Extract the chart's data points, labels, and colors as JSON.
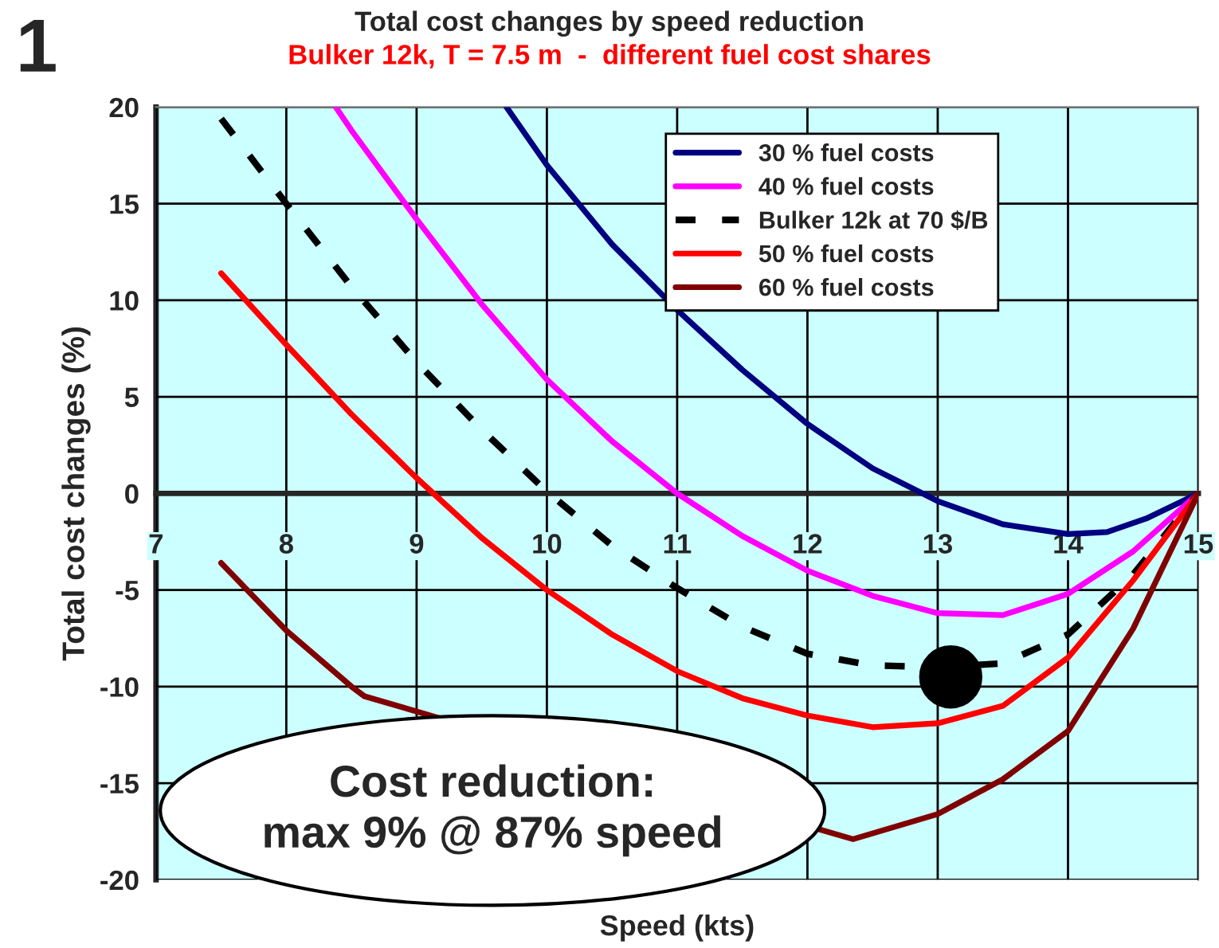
{
  "chart_data": {
    "type": "line",
    "title": "Total cost changes by speed reduction",
    "subtitle": "Bulker 12k, T = 7.5 m  -  different fuel cost shares",
    "xlabel": "Speed (kts)",
    "ylabel": "Total cost changes (%)",
    "annotations": [
      "1",
      "Cost reduction:\nmax 9% @ 87% speed"
    ],
    "xlim": [
      7,
      15
    ],
    "xticks": [
      7,
      8,
      9,
      10,
      11,
      12,
      13,
      14,
      15
    ],
    "ylim": [
      -20,
      20
    ],
    "yticks": [
      -20,
      -15,
      -10,
      -5,
      0,
      5,
      10,
      15,
      20
    ],
    "grid": true,
    "legend": "top right",
    "marker": "none",
    "series": [
      {
        "name": "30 % fuel costs",
        "color": "#000080",
        "line_style": "solid",
        "x": [
          9.69,
          10,
          10.5,
          11,
          11.5,
          12,
          12.5,
          13,
          13.5,
          14,
          14.3,
          14.6,
          15
        ],
        "values": [
          20,
          17,
          12.9,
          9.5,
          6.4,
          3.6,
          1.3,
          -0.4,
          -1.6,
          -2.1,
          -2.0,
          -1.3,
          0
        ]
      },
      {
        "name": "40 % fuel costs",
        "color": "#ff00ff",
        "line_style": "solid",
        "x": [
          8.38,
          8.5,
          9,
          9.5,
          10,
          10.5,
          11,
          11.5,
          12,
          12.5,
          13,
          13.5,
          14,
          14.5,
          15
        ],
        "values": [
          20,
          18.8,
          14.2,
          9.8,
          5.9,
          2.7,
          0,
          -2.2,
          -4,
          -5.3,
          -6.2,
          -6.3,
          -5.2,
          -3,
          0
        ]
      },
      {
        "name": "Bulker 12k at 70 $/B",
        "color": "#000000",
        "line_style": "dashed",
        "x": [
          7.5,
          8,
          8.5,
          9,
          9.5,
          10,
          10.5,
          11,
          11.5,
          12,
          12.5,
          13,
          13.5,
          14,
          14.5,
          15
        ],
        "values": [
          19.4,
          15,
          10.7,
          6.8,
          3.3,
          0.1,
          -2.7,
          -4.9,
          -6.9,
          -8.3,
          -8.9,
          -9,
          -8.8,
          -7.3,
          -4.2,
          0
        ]
      },
      {
        "name": "50 % fuel costs",
        "color": "#ff0000",
        "line_style": "solid",
        "x": [
          7.5,
          8,
          8.5,
          9,
          9.5,
          10,
          10.5,
          11,
          11.5,
          12,
          12.5,
          13,
          13.5,
          14,
          14.5,
          15
        ],
        "values": [
          11.4,
          7.7,
          4.1,
          0.8,
          -2.3,
          -5,
          -7.3,
          -9.2,
          -10.6,
          -11.5,
          -12.1,
          -11.9,
          -11,
          -8.5,
          -4.5,
          0
        ]
      },
      {
        "name": "60 % fuel costs",
        "color": "#800000",
        "line_style": "solid",
        "x": [
          7.5,
          8,
          8.5,
          8.6,
          12.35,
          12.5,
          13,
          13.5,
          14,
          14.5,
          15
        ],
        "values": [
          -3.6,
          -7.1,
          -10,
          -10.5,
          -17.9,
          -17.6,
          -16.6,
          -14.8,
          -12.3,
          -7,
          0
        ]
      },
      {
        "type": "scatter",
        "color": "#000000",
        "marker": "circle",
        "x": [
          13.1
        ],
        "values": [
          -9.5
        ]
      }
    ]
  }
}
